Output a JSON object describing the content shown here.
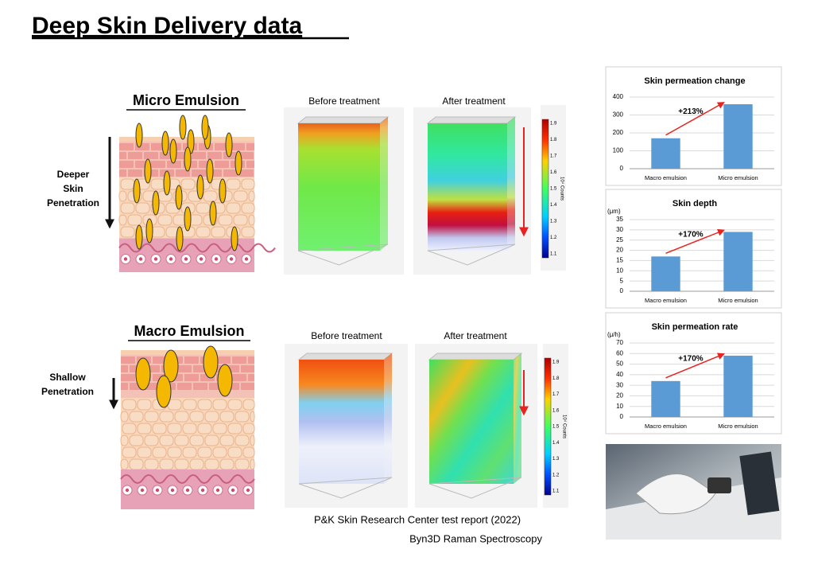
{
  "title": "Deep Skin Delivery data",
  "sections": [
    {
      "label": "Micro Emulsion",
      "arrow_label": [
        "Deeper",
        "Skin",
        "Penetration"
      ],
      "before": "Before treatment",
      "after": "After treatment"
    },
    {
      "label": "Macro Emulsion",
      "arrow_label": [
        "Shallow",
        "Penetration"
      ],
      "before": "Before treatment",
      "after": "After treatment"
    }
  ],
  "colorbar": {
    "ticks": [
      1.9,
      1.8,
      1.7,
      1.6,
      1.5,
      1.4,
      1.3,
      1.2,
      1.1
    ],
    "label": "10⁴ Counts"
  },
  "footer": [
    "P&K Skin Research Center test report (2022)",
    "Byn3D Raman Spectroscopy"
  ],
  "chart_data": [
    {
      "type": "bar",
      "title": "Skin permeation change",
      "categories": [
        "Macro emulsion",
        "Micro emulsion"
      ],
      "values": [
        170,
        360
      ],
      "color": "#5b9bd5",
      "ylim": [
        0,
        400
      ],
      "yticks": [
        0,
        100,
        200,
        300,
        400
      ],
      "grid": true,
      "annotation": "+213%"
    },
    {
      "type": "bar",
      "title": "Skin depth",
      "y_unit": "(μm)",
      "categories": [
        "Macro emulsion",
        "Micro emulsion"
      ],
      "values": [
        17,
        29
      ],
      "color": "#5b9bd5",
      "ylim": [
        0,
        35
      ],
      "yticks": [
        0,
        5,
        10,
        15,
        20,
        25,
        30,
        35
      ],
      "grid": true,
      "annotation": "+170%"
    },
    {
      "type": "bar",
      "title": "Skin permeation rate",
      "y_unit": "(μ/h)",
      "categories": [
        "Macro emulsion",
        "Micro emulsion"
      ],
      "values": [
        34,
        58
      ],
      "color": "#5b9bd5",
      "ylim": [
        0,
        70
      ],
      "yticks": [
        0,
        10,
        20,
        30,
        40,
        50,
        60,
        70
      ],
      "grid": true,
      "annotation": "+170%"
    }
  ]
}
